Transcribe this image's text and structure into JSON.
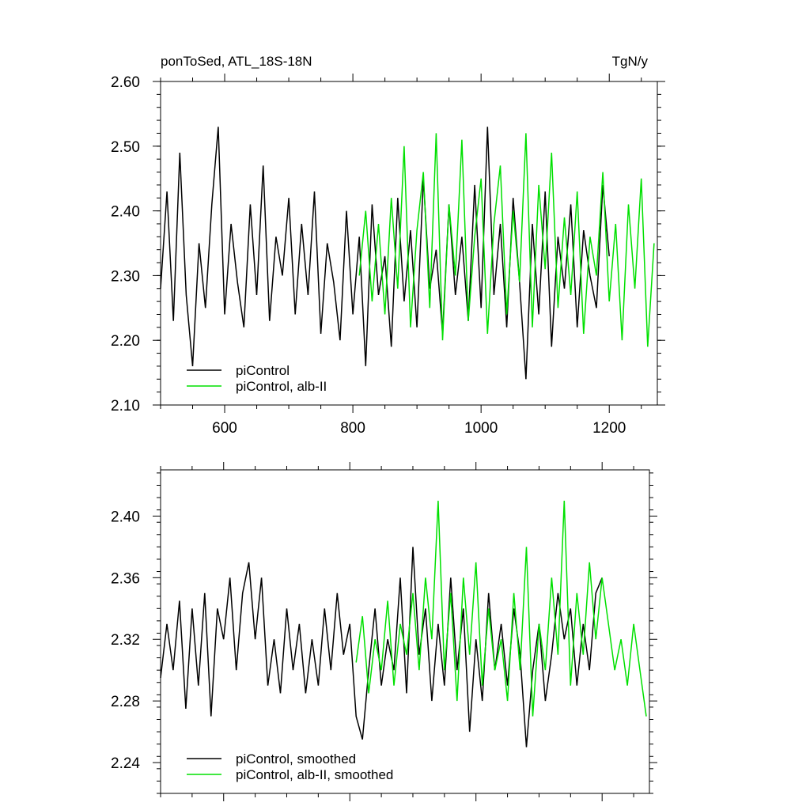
{
  "figure": {
    "title_left": "ponToSed, ATL_18S-18N",
    "title_right": "TgN/y"
  },
  "colors": {
    "piControl": "#000000",
    "alb_II": "#00e000"
  },
  "chart_data": [
    {
      "type": "line",
      "title": "ponToSed, ATL_18S-18N",
      "units": "TgN/y",
      "xlim": [
        500,
        1275
      ],
      "ylim": [
        2.1,
        2.6
      ],
      "xticks": [
        600,
        800,
        1000,
        1200
      ],
      "xtick_labels": [
        "600",
        "800",
        "1000",
        "1200"
      ],
      "yticks": [
        2.1,
        2.2,
        2.3,
        2.4,
        2.5,
        2.6
      ],
      "ytick_labels": [
        "2.10",
        "2.20",
        "2.30",
        "2.40",
        "2.50",
        "2.60"
      ],
      "grid": false,
      "legend_position": "bottom-left",
      "series": [
        {
          "name": "piControl",
          "color": "#000000",
          "x": [
            500,
            510,
            520,
            530,
            540,
            550,
            560,
            570,
            580,
            590,
            600,
            610,
            620,
            630,
            640,
            650,
            660,
            670,
            680,
            690,
            700,
            710,
            720,
            730,
            740,
            750,
            760,
            770,
            780,
            790,
            800,
            810,
            820,
            830,
            840,
            850,
            860,
            870,
            880,
            890,
            900,
            910,
            920,
            930,
            940,
            950,
            960,
            970,
            980,
            990,
            1000,
            1010,
            1020,
            1030,
            1040,
            1050,
            1060,
            1070,
            1080,
            1090,
            1100,
            1110,
            1120,
            1130,
            1140,
            1150,
            1160,
            1170,
            1180,
            1190,
            1200
          ],
          "y": [
            2.28,
            2.43,
            2.23,
            2.49,
            2.27,
            2.16,
            2.35,
            2.25,
            2.41,
            2.53,
            2.24,
            2.38,
            2.29,
            2.22,
            2.41,
            2.27,
            2.47,
            2.23,
            2.36,
            2.3,
            2.42,
            2.24,
            2.38,
            2.27,
            2.43,
            2.21,
            2.35,
            2.29,
            2.2,
            2.4,
            2.24,
            2.36,
            2.16,
            2.41,
            2.27,
            2.33,
            2.19,
            2.42,
            2.26,
            2.37,
            2.22,
            2.45,
            2.28,
            2.34,
            2.21,
            2.41,
            2.27,
            2.36,
            2.23,
            2.44,
            2.25,
            2.53,
            2.27,
            2.38,
            2.22,
            2.42,
            2.29,
            2.14,
            2.38,
            2.24,
            2.43,
            2.19,
            2.36,
            2.28,
            2.41,
            2.22,
            2.37,
            2.3,
            2.25,
            2.44,
            2.33
          ]
        },
        {
          "name": "piControl, alb-II",
          "color": "#00e000",
          "x": [
            810,
            820,
            830,
            840,
            850,
            860,
            870,
            880,
            890,
            900,
            910,
            920,
            930,
            940,
            950,
            960,
            970,
            980,
            990,
            1000,
            1010,
            1020,
            1030,
            1040,
            1050,
            1060,
            1070,
            1080,
            1090,
            1100,
            1110,
            1120,
            1130,
            1140,
            1150,
            1160,
            1170,
            1180,
            1190,
            1200,
            1210,
            1220,
            1230,
            1240,
            1250,
            1260,
            1270
          ],
          "y": [
            2.3,
            2.4,
            2.26,
            2.38,
            2.24,
            2.42,
            2.28,
            2.5,
            2.22,
            2.37,
            2.46,
            2.25,
            2.52,
            2.2,
            2.41,
            2.3,
            2.51,
            2.23,
            2.36,
            2.45,
            2.21,
            2.38,
            2.47,
            2.24,
            2.4,
            2.29,
            2.52,
            2.22,
            2.44,
            2.31,
            2.49,
            2.25,
            2.39,
            2.27,
            2.43,
            2.21,
            2.36,
            2.3,
            2.46,
            2.26,
            2.38,
            2.2,
            2.41,
            2.28,
            2.45,
            2.19,
            2.35
          ]
        }
      ]
    },
    {
      "type": "line",
      "title": "",
      "xlim": [
        500,
        1275
      ],
      "ylim": [
        2.22,
        2.43
      ],
      "xticks": [
        600,
        800,
        1000,
        1200
      ],
      "xtick_labels": [],
      "yticks": [
        2.24,
        2.28,
        2.32,
        2.36,
        2.4
      ],
      "ytick_labels": [
        "2.24",
        "2.28",
        "2.32",
        "2.36",
        "2.40"
      ],
      "grid": false,
      "legend_position": "bottom-left",
      "series": [
        {
          "name": "piControl, smoothed",
          "color": "#000000",
          "x": [
            500,
            510,
            520,
            530,
            540,
            550,
            560,
            570,
            580,
            590,
            600,
            610,
            620,
            630,
            640,
            650,
            660,
            670,
            680,
            690,
            700,
            710,
            720,
            730,
            740,
            750,
            760,
            770,
            780,
            790,
            800,
            810,
            820,
            830,
            840,
            850,
            860,
            870,
            880,
            890,
            900,
            910,
            920,
            930,
            940,
            950,
            960,
            970,
            980,
            990,
            1000,
            1010,
            1020,
            1030,
            1040,
            1050,
            1060,
            1070,
            1080,
            1090,
            1100,
            1110,
            1120,
            1130,
            1140,
            1150,
            1160,
            1170,
            1180,
            1190,
            1200
          ],
          "y": [
            2.295,
            2.33,
            2.3,
            2.345,
            2.275,
            2.34,
            2.29,
            2.35,
            2.27,
            2.34,
            2.32,
            2.36,
            2.3,
            2.35,
            2.37,
            2.32,
            2.36,
            2.29,
            2.32,
            2.285,
            2.34,
            2.3,
            2.33,
            2.285,
            2.32,
            2.29,
            2.34,
            2.3,
            2.35,
            2.31,
            2.33,
            2.27,
            2.255,
            2.3,
            2.34,
            2.29,
            2.32,
            2.3,
            2.36,
            2.285,
            2.38,
            2.31,
            2.34,
            2.28,
            2.33,
            2.29,
            2.36,
            2.3,
            2.34,
            2.26,
            2.32,
            2.28,
            2.35,
            2.3,
            2.33,
            2.29,
            2.34,
            2.31,
            2.25,
            2.3,
            2.33,
            2.28,
            2.31,
            2.35,
            2.32,
            2.34,
            2.29,
            2.33,
            2.3,
            2.35,
            2.36
          ]
        },
        {
          "name": "piControl, alb-II, smoothed",
          "color": "#00e000",
          "x": [
            810,
            820,
            830,
            840,
            850,
            860,
            870,
            880,
            890,
            900,
            910,
            920,
            930,
            940,
            950,
            960,
            970,
            980,
            990,
            1000,
            1010,
            1020,
            1030,
            1040,
            1050,
            1060,
            1070,
            1080,
            1090,
            1100,
            1110,
            1120,
            1130,
            1140,
            1150,
            1160,
            1170,
            1180,
            1190,
            1200,
            1210,
            1220,
            1230,
            1240,
            1250,
            1260,
            1270
          ],
          "y": [
            2.305,
            2.335,
            2.285,
            2.32,
            2.3,
            2.345,
            2.29,
            2.33,
            2.31,
            2.35,
            2.3,
            2.36,
            2.32,
            2.41,
            2.3,
            2.35,
            2.28,
            2.36,
            2.31,
            2.37,
            2.29,
            2.34,
            2.3,
            2.32,
            2.28,
            2.35,
            2.3,
            2.38,
            2.27,
            2.33,
            2.3,
            2.36,
            2.31,
            2.41,
            2.29,
            2.35,
            2.31,
            2.37,
            2.32,
            2.36,
            2.33,
            2.3,
            2.32,
            2.29,
            2.33,
            2.3,
            2.27
          ]
        }
      ]
    }
  ]
}
